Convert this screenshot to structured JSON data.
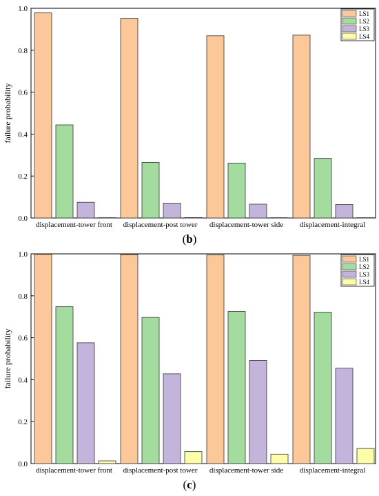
{
  "chart_data": [
    {
      "type": "bar",
      "panel_label": "b",
      "categories": [
        "displacement-tower front",
        "displacement-post tower",
        "displacement-tower side",
        "displacement-integral"
      ],
      "series": [
        {
          "name": "LS1",
          "values": [
            0.978,
            0.952,
            0.869,
            0.872
          ]
        },
        {
          "name": "LS2",
          "values": [
            0.444,
            0.265,
            0.262,
            0.284
          ]
        },
        {
          "name": "LS3",
          "values": [
            0.075,
            0.071,
            0.066,
            0.064
          ]
        },
        {
          "name": "LS4",
          "values": [
            0.0,
            0.002,
            0.0,
            0.0
          ]
        }
      ],
      "ylabel": "failure probability",
      "xlabel": "",
      "ylim": [
        0,
        1.0
      ],
      "yticks": [
        "0.0",
        "0.2",
        "0.4",
        "0.6",
        "0.8",
        "1.0"
      ],
      "legend": "top-right",
      "grid": false
    },
    {
      "type": "bar",
      "panel_label": "c",
      "categories": [
        "displacement-tower front",
        "displacement-post tower",
        "displacement-tower side",
        "displacement-integral"
      ],
      "series": [
        {
          "name": "LS1",
          "values": [
            0.998,
            0.997,
            0.995,
            0.993
          ]
        },
        {
          "name": "LS2",
          "values": [
            0.748,
            0.697,
            0.725,
            0.722
          ]
        },
        {
          "name": "LS3",
          "values": [
            0.576,
            0.428,
            0.492,
            0.455
          ]
        },
        {
          "name": "LS4",
          "values": [
            0.013,
            0.057,
            0.045,
            0.072
          ]
        }
      ],
      "ylabel": "failure probability",
      "xlabel": "",
      "ylim": [
        0,
        1.0
      ],
      "yticks": [
        "0.0",
        "0.2",
        "0.4",
        "0.6",
        "0.8",
        "1.0"
      ],
      "legend": "top-right",
      "grid": false
    }
  ],
  "colors": {
    "LS1": "#fcc799",
    "LS2": "#a4dca0",
    "LS3": "#c3b4dc",
    "LS4": "#fdfca8"
  }
}
